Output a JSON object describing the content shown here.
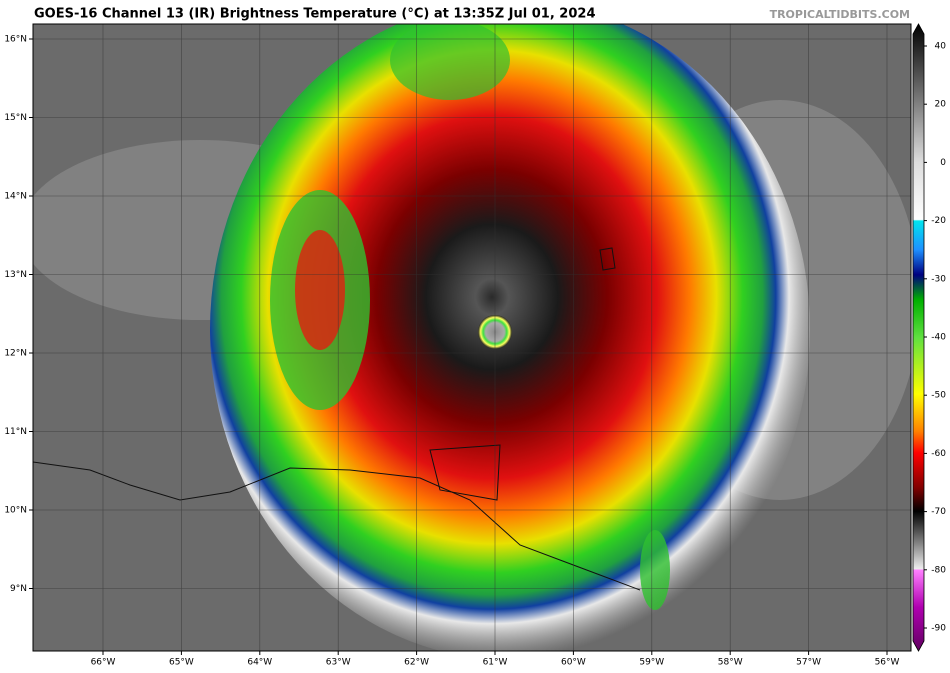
{
  "header": {
    "title": "GOES-16 Channel 13 (IR) Brightness Temperature (°C) at 13:35Z Jul 01, 2024",
    "source": "TROPICALTIDBITS.COM"
  },
  "map": {
    "longitude_labels": [
      "66°W",
      "65°W",
      "64°W",
      "63°W",
      "62°W",
      "61°W",
      "60°W",
      "59°W",
      "58°W",
      "57°W",
      "56°W"
    ],
    "latitude_labels": [
      "16°N",
      "15°N",
      "14°N",
      "13°N",
      "12°N",
      "11°N",
      "10°N",
      "9°N"
    ]
  },
  "colorbar": {
    "ticks": [
      40,
      20,
      0,
      -20,
      -30,
      -40,
      -50,
      -60,
      -70,
      -80,
      -90
    ]
  }
}
